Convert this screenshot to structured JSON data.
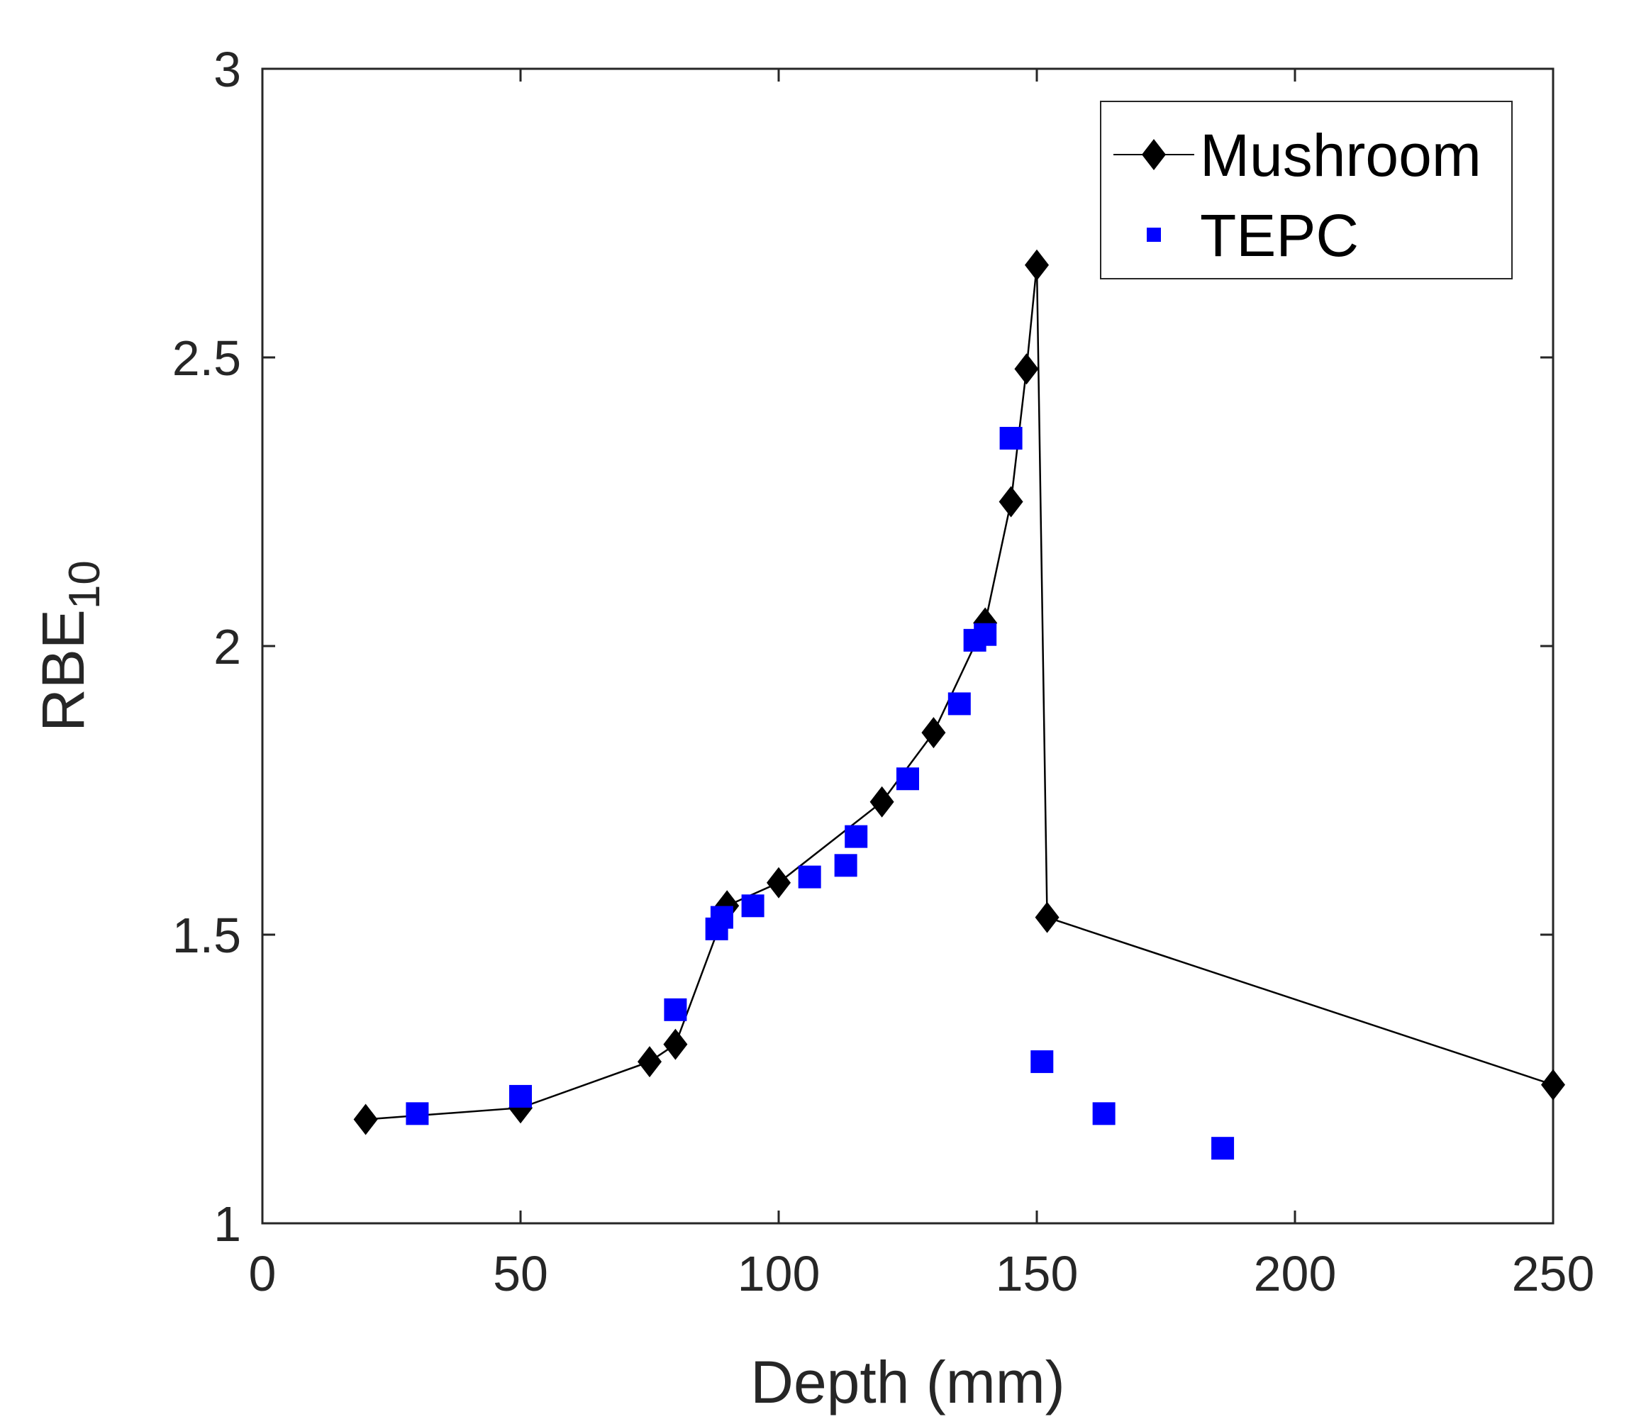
{
  "chart_data": {
    "type": "scatter",
    "title": "",
    "xlabel": "Depth (mm)",
    "ylabel_main": "RBE",
    "ylabel_sub": "10",
    "xlim": [
      0,
      250
    ],
    "ylim": [
      1,
      3
    ],
    "xticks": [
      0,
      50,
      100,
      150,
      200,
      250
    ],
    "yticks": [
      1,
      1.5,
      2,
      2.5,
      3
    ],
    "xtick_labels": [
      "0",
      "50",
      "100",
      "150",
      "200",
      "250"
    ],
    "ytick_labels": [
      "1",
      "1.5",
      "2",
      "2.5",
      "3"
    ],
    "grid": false,
    "legend_position": "top-right",
    "series": [
      {
        "name": "Mushroom",
        "style": "line-diamond",
        "color": "#000000",
        "x": [
          20,
          50,
          75,
          80,
          90,
          100,
          120,
          130,
          140,
          145,
          148,
          150,
          152,
          250
        ],
        "y": [
          1.18,
          1.2,
          1.28,
          1.31,
          1.55,
          1.59,
          1.73,
          1.85,
          2.04,
          2.25,
          2.48,
          2.66,
          1.53,
          1.24
        ]
      },
      {
        "name": "TEPC",
        "style": "square",
        "color": "#0000ff",
        "x": [
          30,
          50,
          80,
          88,
          89,
          95,
          106,
          113,
          115,
          125,
          135,
          138,
          140,
          145,
          151,
          163,
          186
        ],
        "y": [
          1.19,
          1.22,
          1.37,
          1.51,
          1.53,
          1.55,
          1.6,
          1.62,
          1.67,
          1.77,
          1.9,
          2.01,
          2.02,
          2.36,
          1.28,
          1.19,
          1.13
        ]
      }
    ]
  }
}
